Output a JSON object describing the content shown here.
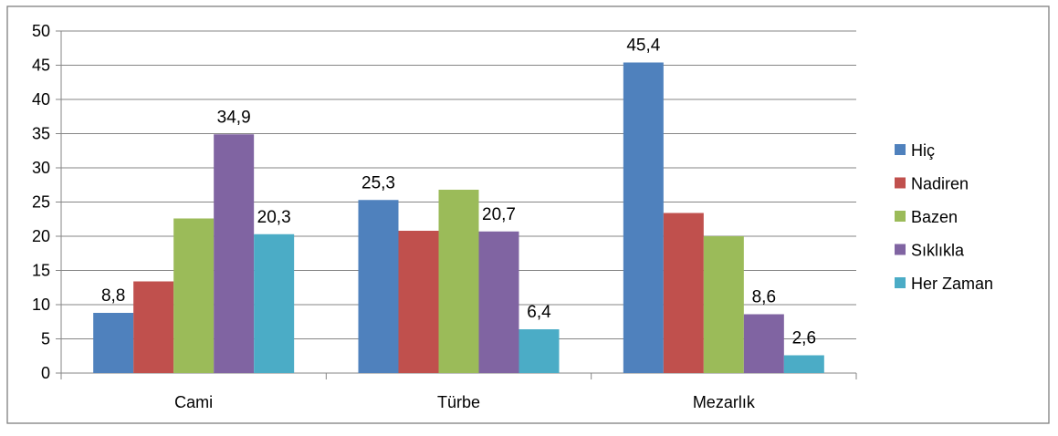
{
  "chart_data": {
    "type": "bar",
    "title": "",
    "xlabel": "",
    "ylabel": "",
    "categories": [
      "Cami",
      "Türbe",
      "Mezarlık"
    ],
    "ylim": [
      0,
      50
    ],
    "yticks": [
      0,
      5,
      10,
      15,
      20,
      25,
      30,
      35,
      40,
      45,
      50
    ],
    "grid": true,
    "legend_position": "right",
    "series": [
      {
        "name": "Hiç",
        "color": "#4F81BD",
        "values": [
          8.8,
          25.3,
          45.4
        ],
        "labels": [
          "8,8",
          "25,3",
          "45,4"
        ]
      },
      {
        "name": "Nadiren",
        "color": "#C0504D",
        "values": [
          13.4,
          20.8,
          23.4
        ],
        "labels": [
          "",
          "",
          ""
        ]
      },
      {
        "name": "Bazen",
        "color": "#9BBB59",
        "values": [
          22.6,
          26.8,
          20.0
        ],
        "labels": [
          "",
          "",
          ""
        ]
      },
      {
        "name": "Sıklıkla",
        "color": "#8064A2",
        "values": [
          34.9,
          20.7,
          8.6
        ],
        "labels": [
          "34,9",
          "20,7",
          "8,6"
        ]
      },
      {
        "name": "Her Zaman",
        "color": "#4BACC6",
        "values": [
          20.3,
          6.4,
          2.6
        ],
        "labels": [
          "20,3",
          "6,4",
          "2,6"
        ]
      }
    ]
  }
}
